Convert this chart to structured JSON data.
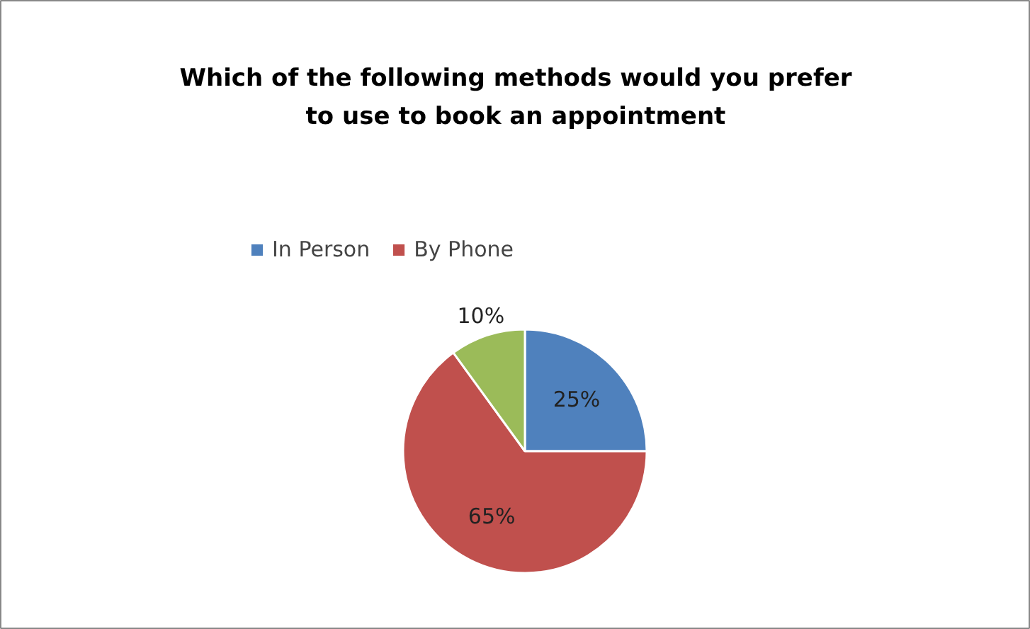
{
  "chart_data": {
    "type": "pie",
    "title": "Which of the following methods would you prefer\nto use to book an appointment",
    "categories": [
      "In Person",
      "By Phone",
      null
    ],
    "values": [
      25,
      65,
      10
    ],
    "colors": [
      "#4f81bd",
      "#c0504d",
      "#9bbb59"
    ],
    "value_labels": [
      "25%",
      "65%",
      "10%"
    ],
    "legend": "top"
  }
}
